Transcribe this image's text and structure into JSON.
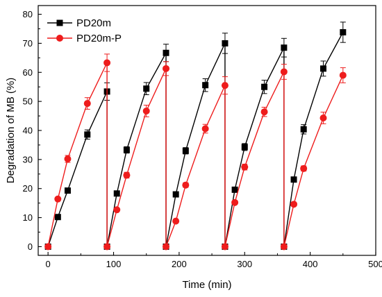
{
  "chart_data": {
    "type": "line",
    "title": "",
    "xlabel": "Time (min)",
    "ylabel": "Degradation of MB (%)",
    "xlim": [
      -15,
      500
    ],
    "ylim": [
      -3,
      83
    ],
    "xticks": [
      0,
      100,
      200,
      300,
      400,
      500
    ],
    "yticks": [
      0,
      10,
      20,
      30,
      40,
      50,
      60,
      70,
      80
    ],
    "legend_position": "top-left",
    "series": [
      {
        "name": "PD20m",
        "color": "#000000",
        "marker": "square",
        "cycles": [
          [
            {
              "x": 0,
              "y": 0,
              "err": 0
            },
            {
              "x": 15,
              "y": 10.2,
              "err": 0.4
            },
            {
              "x": 30,
              "y": 19.3,
              "err": 0.6
            },
            {
              "x": 60,
              "y": 38.6,
              "err": 1.6
            },
            {
              "x": 90,
              "y": 53.4,
              "err": 3.0
            }
          ],
          [
            {
              "x": 90,
              "y": 0,
              "err": 0
            },
            {
              "x": 105,
              "y": 18.3,
              "err": 0.5
            },
            {
              "x": 120,
              "y": 33.3,
              "err": 1.1
            },
            {
              "x": 150,
              "y": 54.4,
              "err": 2.1
            },
            {
              "x": 180,
              "y": 66.7,
              "err": 3.0
            }
          ],
          [
            {
              "x": 180,
              "y": 0,
              "err": 0
            },
            {
              "x": 195,
              "y": 18.0,
              "err": 0.5
            },
            {
              "x": 210,
              "y": 33.0,
              "err": 1.1
            },
            {
              "x": 240,
              "y": 55.6,
              "err": 2.2
            },
            {
              "x": 270,
              "y": 70.0,
              "err": 3.5
            }
          ],
          [
            {
              "x": 270,
              "y": 0,
              "err": 0
            },
            {
              "x": 285,
              "y": 19.6,
              "err": 0.5
            },
            {
              "x": 300,
              "y": 34.3,
              "err": 1.2
            },
            {
              "x": 330,
              "y": 55.0,
              "err": 2.3
            },
            {
              "x": 360,
              "y": 68.5,
              "err": 3.2
            }
          ],
          [
            {
              "x": 360,
              "y": 0,
              "err": 0
            },
            {
              "x": 375,
              "y": 23.1,
              "err": 0.6
            },
            {
              "x": 390,
              "y": 40.4,
              "err": 1.6
            },
            {
              "x": 420,
              "y": 61.3,
              "err": 2.6
            },
            {
              "x": 450,
              "y": 73.8,
              "err": 3.5
            }
          ]
        ]
      },
      {
        "name": "PD20m-P",
        "color": "#ee1c1c",
        "marker": "circle",
        "cycles": [
          [
            {
              "x": 0,
              "y": 0,
              "err": 0
            },
            {
              "x": 15,
              "y": 16.4,
              "err": 0.6
            },
            {
              "x": 30,
              "y": 30.2,
              "err": 1.2
            },
            {
              "x": 60,
              "y": 49.3,
              "err": 2.0
            },
            {
              "x": 90,
              "y": 63.3,
              "err": 3.0
            }
          ],
          [
            {
              "x": 90,
              "y": 0,
              "err": 0
            },
            {
              "x": 105,
              "y": 12.7,
              "err": 0.5
            },
            {
              "x": 120,
              "y": 24.6,
              "err": 1.0
            },
            {
              "x": 150,
              "y": 46.7,
              "err": 2.0
            },
            {
              "x": 180,
              "y": 61.3,
              "err": 2.4
            }
          ],
          [
            {
              "x": 180,
              "y": 0,
              "err": 0
            },
            {
              "x": 195,
              "y": 8.8,
              "err": 0.4
            },
            {
              "x": 210,
              "y": 21.2,
              "err": 0.8
            },
            {
              "x": 240,
              "y": 40.6,
              "err": 1.5
            },
            {
              "x": 270,
              "y": 55.5,
              "err": 3.0
            }
          ],
          [
            {
              "x": 270,
              "y": 0,
              "err": 0
            },
            {
              "x": 285,
              "y": 15.2,
              "err": 0.5
            },
            {
              "x": 300,
              "y": 27.4,
              "err": 1.0
            },
            {
              "x": 330,
              "y": 46.4,
              "err": 1.6
            },
            {
              "x": 360,
              "y": 60.2,
              "err": 2.6
            }
          ],
          [
            {
              "x": 360,
              "y": 0,
              "err": 0
            },
            {
              "x": 375,
              "y": 14.6,
              "err": 0.5
            },
            {
              "x": 390,
              "y": 26.9,
              "err": 0.9
            },
            {
              "x": 420,
              "y": 44.3,
              "err": 2.0
            },
            {
              "x": 450,
              "y": 59.0,
              "err": 2.6
            }
          ]
        ]
      }
    ]
  }
}
